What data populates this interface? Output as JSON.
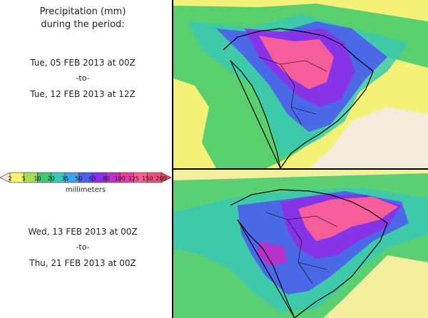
{
  "title": {
    "line1": "Precipitation (mm)",
    "line2": "during the period:"
  },
  "period1": {
    "start": "Tue, 05 FEB 2013 at 00Z",
    "separator": "-to-",
    "end": "Tue, 12 FEB 2013 at 12Z"
  },
  "period2": {
    "start": "Wed, 13 FEB 2013 at 00Z",
    "separator": "-to-",
    "end": "Thu, 21 FEB 2013 at 00Z"
  },
  "legend": {
    "units": "millimeters",
    "ticks": [
      "2",
      "5",
      "10",
      "20",
      "35",
      "50",
      "65",
      "80",
      "100",
      "125",
      "150",
      "200"
    ],
    "colors": [
      "#f2ead8",
      "#f4f26e",
      "#a7dd54",
      "#3ec96b",
      "#39c9b4",
      "#3fa2ee",
      "#4d5ded",
      "#8e2ee8",
      "#c22ec8",
      "#f13aa0",
      "#fb6196",
      "#f0507a",
      "#e8445c"
    ]
  },
  "map_colors": {
    "background": "#f3ecdc",
    "light_yellow": "#f4f26e",
    "green": "#3ec96b",
    "cyan": "#39c9b4",
    "blue": "#4d5ded",
    "purple": "#8e2ee8",
    "magenta": "#c22ec8",
    "pink": "#fb6196",
    "coast": "#000000"
  }
}
